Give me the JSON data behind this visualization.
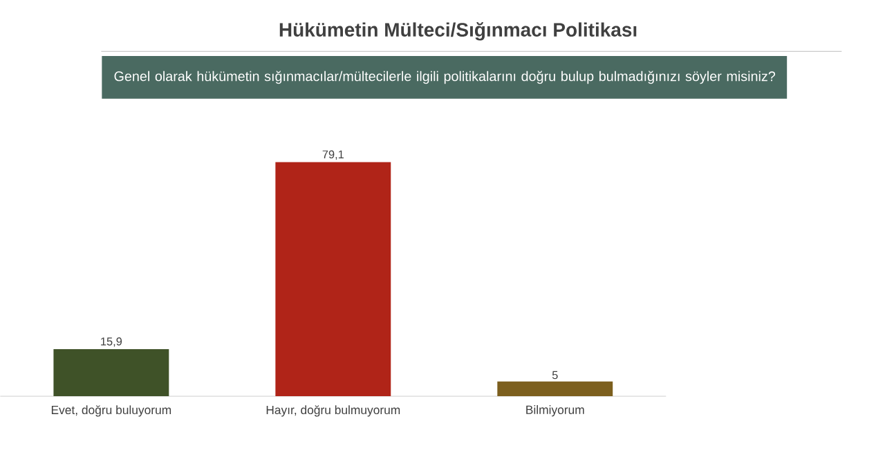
{
  "chart_data": {
    "type": "bar",
    "title": "Hükümetin Mülteci/Sığınmacı Politikası",
    "subtitle": "Genel olarak hükümetin sığınmacılar/mültecilerle ilgili politikalarını doğru bulup bulmadığınızı söyler misiniz?",
    "categories": [
      "Evet, doğru buluyorum",
      "Hayır, doğru bulmuyorum",
      "Bilmiyorum"
    ],
    "values": [
      15.9,
      79.1,
      5
    ],
    "colors": [
      "#3f5228",
      "#b02418",
      "#7c5f1e"
    ],
    "value_labels": [
      "15,9",
      "79,1",
      "5"
    ]
  }
}
